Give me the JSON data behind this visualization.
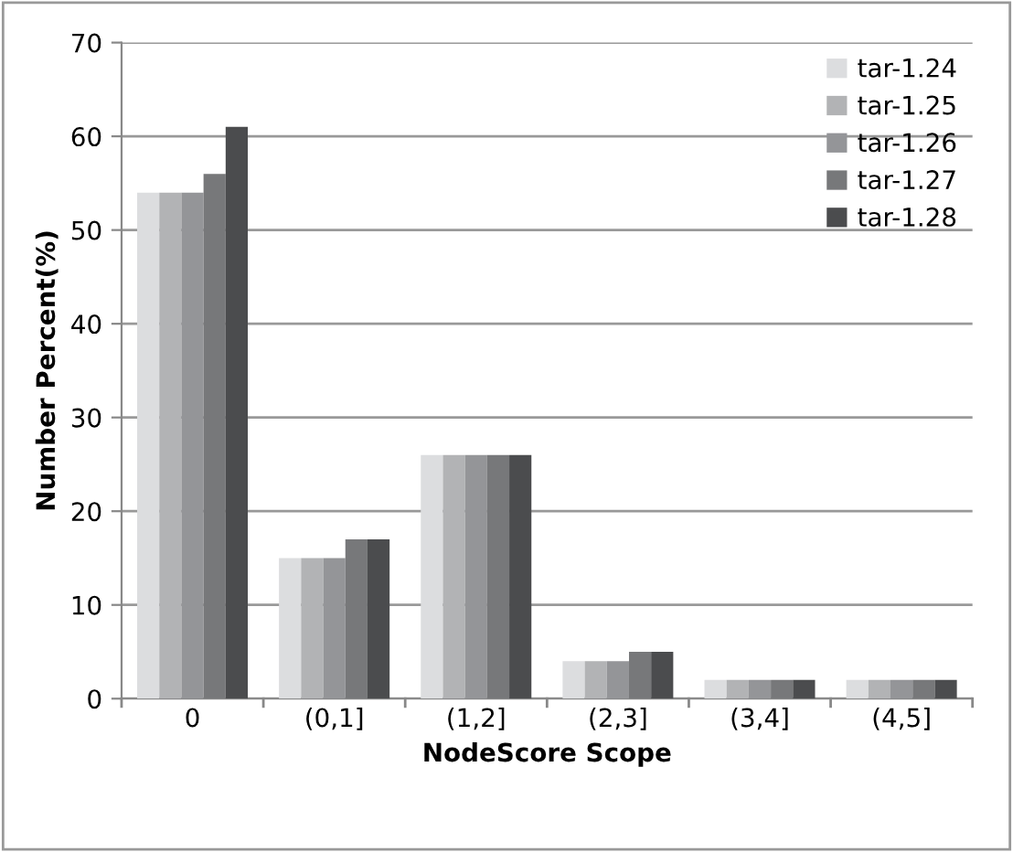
{
  "chart_data": {
    "type": "bar",
    "xlabel": "NodeScore Scope",
    "ylabel": "Number Percent(%)",
    "categories": [
      "0",
      "(0,1]",
      "(1,2]",
      "(2,3]",
      "(3,4]",
      "(4,5]"
    ],
    "series": [
      {
        "name": "tar-1.24",
        "color": "#dcdddf",
        "values": [
          54,
          15,
          26,
          4,
          2,
          2
        ]
      },
      {
        "name": "tar-1.25",
        "color": "#b2b3b5",
        "values": [
          54,
          15,
          26,
          4,
          2,
          2
        ]
      },
      {
        "name": "tar-1.26",
        "color": "#949598",
        "values": [
          54,
          15,
          26,
          4,
          2,
          2
        ]
      },
      {
        "name": "tar-1.27",
        "color": "#77787a",
        "values": [
          56,
          17,
          26,
          5,
          2,
          2
        ]
      },
      {
        "name": "tar-1.28",
        "color": "#4b4c4e",
        "values": [
          61,
          17,
          26,
          5,
          2,
          2
        ]
      }
    ],
    "ylim": [
      0,
      70
    ],
    "yticks": [
      0,
      10,
      20,
      30,
      40,
      50,
      60,
      70
    ],
    "grid": "y",
    "legend": "top right"
  }
}
